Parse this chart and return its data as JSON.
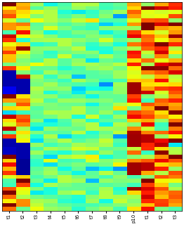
{
  "n_rows": 52,
  "n_cols": 13,
  "x_labels": [
    "t1",
    "t2",
    "t3",
    "t4",
    "t5",
    "t6",
    "t7",
    "t8",
    "t9",
    "p10",
    "t1",
    "t2",
    "t3"
  ],
  "colormap": "jet",
  "vmin": 0.0,
  "vmax": 1.0,
  "figsize": [
    2.62,
    3.2
  ],
  "dpi": 100,
  "seed": 7,
  "col_means": [
    0.75,
    0.7,
    0.5,
    0.48,
    0.47,
    0.48,
    0.47,
    0.48,
    0.5,
    0.72,
    0.76,
    0.72,
    0.76
  ],
  "col_stds": [
    0.18,
    0.16,
    0.08,
    0.07,
    0.07,
    0.07,
    0.07,
    0.07,
    0.08,
    0.16,
    0.18,
    0.16,
    0.18
  ],
  "blue_patches": [
    {
      "rows": [
        17,
        18,
        19,
        20
      ],
      "cols": [
        0
      ],
      "val": 0.04
    },
    {
      "rows": [
        19,
        20,
        21,
        22
      ],
      "cols": [
        1
      ],
      "val": 0.04
    },
    {
      "rows": [
        34,
        35,
        36,
        37
      ],
      "cols": [
        0
      ],
      "val": 0.04
    },
    {
      "rows": [
        35,
        36,
        37,
        38
      ],
      "cols": [
        1
      ],
      "val": 0.04
    },
    {
      "rows": [
        39,
        40,
        41,
        42
      ],
      "cols": [
        1
      ],
      "val": 0.02
    },
    {
      "rows": [
        21,
        22
      ],
      "cols": [
        0
      ],
      "val": 0.1
    },
    {
      "rows": [
        36,
        37
      ],
      "cols": [
        0
      ],
      "val": 0.06
    }
  ],
  "red_patches": [
    {
      "rows": [
        20,
        21,
        22
      ],
      "cols": [
        9
      ],
      "val": 0.97
    },
    {
      "rows": [
        33,
        34,
        35
      ],
      "cols": [
        9
      ],
      "val": 0.97
    },
    {
      "rows": [
        33,
        34
      ],
      "cols": [
        10
      ],
      "val": 0.95
    },
    {
      "rows": [
        40,
        41,
        42
      ],
      "cols": [
        9
      ],
      "val": 0.97
    },
    {
      "rows": [
        40,
        41
      ],
      "cols": [
        10
      ],
      "val": 0.95
    }
  ],
  "cyan_patches": [
    {
      "rows": [
        3,
        4
      ],
      "cols": [
        3
      ],
      "val": 0.57
    },
    {
      "rows": [
        9,
        10
      ],
      "cols": [
        4
      ],
      "val": 0.57
    },
    {
      "rows": [
        14,
        15
      ],
      "cols": [
        3
      ],
      "val": 0.57
    },
    {
      "rows": [
        26,
        27
      ],
      "cols": [
        5
      ],
      "val": 0.57
    },
    {
      "rows": [
        30,
        31
      ],
      "cols": [
        6
      ],
      "val": 0.57
    },
    {
      "rows": [
        43,
        44
      ],
      "cols": [
        4
      ],
      "val": 0.57
    },
    {
      "rows": [
        47,
        48
      ],
      "cols": [
        7
      ],
      "val": 0.57
    }
  ]
}
